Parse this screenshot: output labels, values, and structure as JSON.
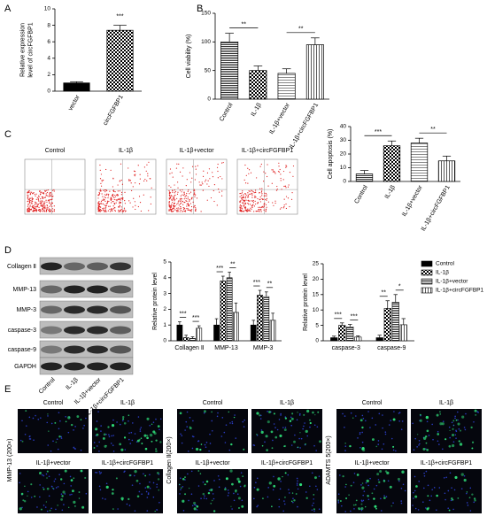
{
  "panels": [
    "A",
    "B",
    "C",
    "D",
    "E"
  ],
  "chart_data": [
    {
      "type": "bar",
      "ylabel": [
        "Relative expression",
        "level of circFGFBP1"
      ],
      "categories": [
        "vector",
        "circFGFBP1"
      ],
      "values": [
        1.0,
        7.4
      ],
      "errors": [
        0.15,
        0.6
      ],
      "ylim": [
        0,
        10
      ],
      "yticks": [
        0,
        2,
        4,
        6,
        8,
        10
      ],
      "color": "#000000",
      "patterns": [
        "solid",
        "checker"
      ],
      "annotations": [
        "***"
      ]
    },
    {
      "type": "bar",
      "ylabel": [
        "Cell viability (%)"
      ],
      "categories": [
        "Control",
        "IL-1β",
        "IL-1β+vector",
        "IL-1β+circFGFBP1"
      ],
      "values": [
        100,
        50,
        45,
        95
      ],
      "errors": [
        15,
        8,
        8,
        12
      ],
      "ylim": [
        0,
        150
      ],
      "yticks": [
        0,
        50,
        100,
        150
      ],
      "color": "#000000",
      "patterns": [
        "hlines",
        "checker",
        "hlines-light",
        "vlines"
      ],
      "annotations": [
        "**",
        "**"
      ]
    },
    {
      "type": "bar",
      "ylabel": [
        "Cell apoptosis (%)"
      ],
      "categories": [
        "Control",
        "IL-1β",
        "IL-1β+vector",
        "IL-1β+circFGFBP1"
      ],
      "values": [
        5.5,
        26,
        28,
        15
      ],
      "errors": [
        2.5,
        3.5,
        3.5,
        3.5
      ],
      "ylim": [
        0,
        40
      ],
      "yticks": [
        0,
        10,
        20,
        30,
        40
      ],
      "color": "#000000",
      "patterns": [
        "hlines",
        "checker",
        "hlines-light",
        "vlines"
      ],
      "annotations": [
        "***",
        "**"
      ]
    },
    {
      "type": "grouped_bar",
      "ylabel": [
        "Relative protein level"
      ],
      "categories": [
        "Collagen Ⅱ",
        "MMP-13",
        "MMP-3"
      ],
      "ylim": [
        0,
        5
      ],
      "yticks": [
        0,
        1,
        2,
        3,
        4,
        5
      ],
      "series": [
        {
          "name": "Control",
          "color": "#000000",
          "pattern": "solid",
          "values": [
            1.0,
            1.0,
            1.0
          ],
          "errors": [
            0.2,
            0.4,
            0.3
          ]
        },
        {
          "name": "IL-1β",
          "color": "#000000",
          "pattern": "checker",
          "values": [
            0.2,
            3.8,
            2.9
          ],
          "errors": [
            0.15,
            0.3,
            0.3
          ]
        },
        {
          "name": "IL-1β+vector",
          "color": "#000000",
          "pattern": "hlines",
          "values": [
            0.15,
            4.0,
            2.8
          ],
          "errors": [
            0.1,
            0.35,
            0.3
          ]
        },
        {
          "name": "IL-1β+circFGFBP1",
          "color": "#000000",
          "pattern": "vlines",
          "values": [
            0.8,
            1.8,
            1.3
          ],
          "errors": [
            0.15,
            0.6,
            0.45
          ]
        }
      ],
      "annotations": [
        "***",
        "***",
        "***",
        "**",
        "***",
        "**"
      ]
    },
    {
      "type": "grouped_bar",
      "ylabel": [
        "Relative protein level"
      ],
      "categories": [
        "caspase-3",
        "caspase-9"
      ],
      "ylim": [
        0,
        25
      ],
      "yticks": [
        0,
        5,
        10,
        15,
        20,
        25
      ],
      "legend": "right",
      "series": [
        {
          "name": "Control",
          "color": "#000000",
          "pattern": "solid",
          "values": [
            1.0,
            1.0
          ],
          "errors": [
            0.5,
            0.8
          ]
        },
        {
          "name": "IL-1β",
          "color": "#000000",
          "pattern": "checker",
          "values": [
            5.0,
            10.5
          ],
          "errors": [
            0.8,
            2.5
          ]
        },
        {
          "name": "IL-1β+vector",
          "color": "#000000",
          "pattern": "hlines",
          "values": [
            4.5,
            12.5
          ],
          "errors": [
            0.8,
            2.5
          ]
        },
        {
          "name": "IL-1β+circFGFBP1",
          "color": "#000000",
          "pattern": "vlines",
          "values": [
            1.2,
            5.2
          ],
          "errors": [
            0.4,
            2.0
          ]
        }
      ],
      "annotations": [
        "***",
        "***",
        "**",
        "*"
      ]
    }
  ],
  "flow_cytometry": {
    "titles": [
      "Control",
      "IL-1β",
      "IL-1β+vector",
      "IL-1β+circFGFBP1"
    ]
  },
  "western_blot": {
    "proteins": [
      "Collagen Ⅱ",
      "MMP-13",
      "MMP-3",
      "caspase-3",
      "caspase-9",
      "GAPDH"
    ],
    "lanes": [
      "Control",
      "IL-1β",
      "IL-1β+vector",
      "IL-1β+circFGFBP1"
    ]
  },
  "immunofluorescence": {
    "stains": [
      "MMP-13 (200×)",
      "Collagen Ⅱ(200×)",
      "ADAMTS 5(200×)"
    ],
    "conditions": [
      "Control",
      "IL-1β",
      "IL-1β+vector",
      "IL-1β+circFGFBP1"
    ]
  }
}
